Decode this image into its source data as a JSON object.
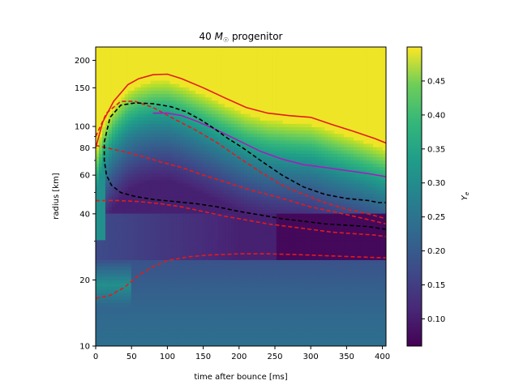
{
  "chart_data": {
    "type": "heatmap",
    "title": {
      "prefix": "40 ",
      "symbol": "M",
      "subscript": "☉",
      "suffix": " progenitor"
    },
    "xlabel": "time after bounce [ms]",
    "ylabel": "radius [km]",
    "colorbar_label": "Y_e",
    "xlim": [
      0,
      405
    ],
    "ylim": [
      10,
      230
    ],
    "y_scale": "log",
    "x_ticks": [
      0,
      50,
      100,
      150,
      200,
      250,
      300,
      350,
      400
    ],
    "x_tick_labels": [
      "0",
      "50",
      "100",
      "150",
      "200",
      "250",
      "300",
      "350",
      "400"
    ],
    "y_ticks": [
      10,
      20,
      40,
      60,
      80,
      100,
      150,
      200
    ],
    "y_tick_labels": [
      "10",
      "20",
      "40",
      "60",
      "80",
      "100",
      "150",
      "200"
    ],
    "colorbar": {
      "vmin": 0.06,
      "vmax": 0.5,
      "ticks": [
        0.1,
        0.15,
        0.2,
        0.25,
        0.3,
        0.35,
        0.4,
        0.45
      ],
      "tick_labels": [
        "0.10",
        "0.15",
        "0.20",
        "0.25",
        "0.30",
        "0.35",
        "0.40",
        "0.45"
      ],
      "colormap": "viridis"
    },
    "contours": [
      {
        "color": "#e41a1c",
        "style": "solid",
        "points": [
          [
            0,
            80
          ],
          [
            10,
            105
          ],
          [
            25,
            130
          ],
          [
            45,
            155
          ],
          [
            60,
            165
          ],
          [
            80,
            172
          ],
          [
            100,
            173
          ],
          [
            120,
            165
          ],
          [
            150,
            150
          ],
          [
            180,
            135
          ],
          [
            210,
            122
          ],
          [
            240,
            115
          ],
          [
            270,
            112
          ],
          [
            300,
            110
          ],
          [
            330,
            102
          ],
          [
            360,
            95
          ],
          [
            390,
            88
          ],
          [
            405,
            84
          ]
        ]
      },
      {
        "color": "#e41a1c",
        "style": "dashed",
        "points": [
          [
            0,
            90
          ],
          [
            15,
            115
          ],
          [
            35,
            130
          ],
          [
            55,
            130
          ],
          [
            80,
            122
          ],
          [
            110,
            108
          ],
          [
            140,
            96
          ],
          [
            170,
            84
          ],
          [
            200,
            72
          ],
          [
            230,
            62
          ],
          [
            260,
            54
          ],
          [
            290,
            49
          ],
          [
            320,
            45
          ],
          [
            350,
            42
          ],
          [
            380,
            40
          ],
          [
            405,
            38
          ]
        ]
      },
      {
        "color": "#e41a1c",
        "style": "dashed",
        "points": [
          [
            0,
            82
          ],
          [
            30,
            78
          ],
          [
            60,
            74
          ],
          [
            90,
            69
          ],
          [
            120,
            65
          ],
          [
            150,
            60
          ],
          [
            180,
            56
          ],
          [
            210,
            52
          ],
          [
            240,
            49
          ],
          [
            270,
            46
          ],
          [
            300,
            43
          ],
          [
            330,
            41
          ],
          [
            360,
            39
          ],
          [
            390,
            37
          ],
          [
            405,
            36
          ]
        ]
      },
      {
        "color": "#e41a1c",
        "style": "dashed",
        "points": [
          [
            0,
            46
          ],
          [
            30,
            46
          ],
          [
            60,
            45.5
          ],
          [
            90,
            44.5
          ],
          [
            120,
            43
          ],
          [
            150,
            41
          ],
          [
            180,
            39
          ],
          [
            210,
            37.5
          ],
          [
            240,
            36
          ],
          [
            270,
            35
          ],
          [
            300,
            34
          ],
          [
            330,
            33
          ],
          [
            360,
            32.5
          ],
          [
            390,
            32
          ],
          [
            405,
            31.5
          ]
        ]
      },
      {
        "color": "#e41a1c",
        "style": "dashed",
        "points": [
          [
            0,
            16.5
          ],
          [
            20,
            17
          ],
          [
            40,
            18.5
          ],
          [
            60,
            21
          ],
          [
            80,
            23
          ],
          [
            100,
            24.5
          ],
          [
            130,
            25.5
          ],
          [
            160,
            26
          ],
          [
            200,
            26.3
          ],
          [
            240,
            26.3
          ],
          [
            280,
            26.1
          ],
          [
            320,
            25.8
          ],
          [
            360,
            25.5
          ],
          [
            405,
            25.2
          ]
        ]
      },
      {
        "color": "#a020c0",
        "style": "solid",
        "points": [
          [
            80,
            115
          ],
          [
            100,
            115
          ],
          [
            120,
            112
          ],
          [
            140,
            106
          ],
          [
            170,
            96
          ],
          [
            200,
            86
          ],
          [
            230,
            77
          ],
          [
            260,
            71
          ],
          [
            290,
            67
          ],
          [
            320,
            65
          ],
          [
            350,
            63
          ],
          [
            380,
            61
          ],
          [
            405,
            59
          ]
        ]
      },
      {
        "color": "#000000",
        "style": "dashed",
        "points": [
          [
            405,
            34
          ],
          [
            380,
            35
          ],
          [
            350,
            35.5
          ],
          [
            320,
            36
          ],
          [
            290,
            37
          ],
          [
            260,
            38
          ],
          [
            230,
            39.5
          ],
          [
            200,
            41
          ],
          [
            170,
            43
          ],
          [
            140,
            44.5
          ],
          [
            110,
            45.5
          ],
          [
            80,
            46.5
          ],
          [
            55,
            48
          ],
          [
            35,
            50
          ],
          [
            22,
            54
          ],
          [
            15,
            60
          ],
          [
            12,
            70
          ],
          [
            12,
            85
          ],
          [
            20,
            110
          ],
          [
            35,
            125
          ],
          [
            55,
            128
          ],
          [
            80,
            127
          ],
          [
            105,
            123
          ],
          [
            125,
            117
          ],
          [
            145,
            108
          ],
          [
            165,
            98
          ],
          [
            185,
            88
          ],
          [
            205,
            80
          ],
          [
            230,
            70
          ],
          [
            260,
            60
          ],
          [
            290,
            53
          ],
          [
            320,
            49
          ],
          [
            350,
            47
          ],
          [
            380,
            46
          ],
          [
            395,
            45
          ],
          [
            405,
            45
          ]
        ]
      }
    ]
  }
}
